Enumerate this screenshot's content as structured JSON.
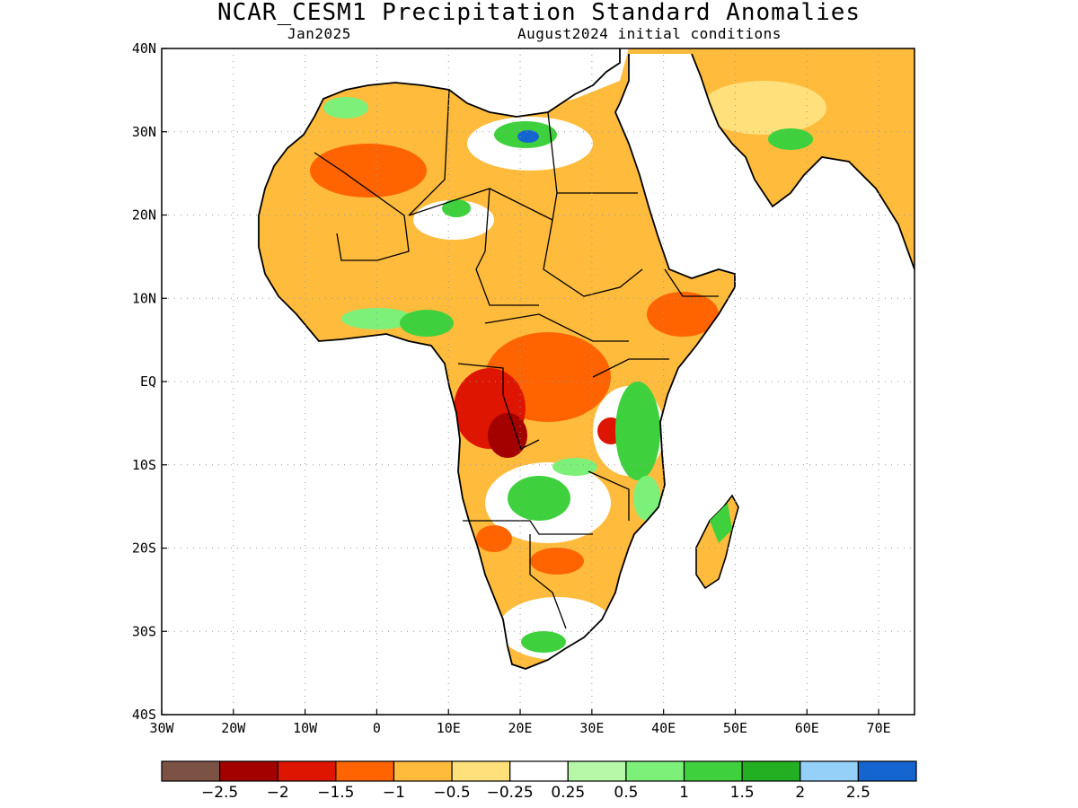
{
  "title": "NCAR_CESM1 Precipitation Standard Anomalies",
  "subtitle_left": "Jan2025",
  "subtitle_right": "August2024 initial conditions",
  "map": {
    "lon_range": [
      -30,
      75
    ],
    "lat_range": [
      -40,
      40
    ],
    "x_ticks": [
      {
        "lon": -30,
        "label": "30W"
      },
      {
        "lon": -20,
        "label": "20W"
      },
      {
        "lon": -10,
        "label": "10W"
      },
      {
        "lon": 0,
        "label": "0"
      },
      {
        "lon": 10,
        "label": "10E"
      },
      {
        "lon": 20,
        "label": "20E"
      },
      {
        "lon": 30,
        "label": "30E"
      },
      {
        "lon": 40,
        "label": "40E"
      },
      {
        "lon": 50,
        "label": "50E"
      },
      {
        "lon": 60,
        "label": "60E"
      },
      {
        "lon": 70,
        "label": "70E"
      }
    ],
    "y_ticks": [
      {
        "lat": 40,
        "label": "40N"
      },
      {
        "lat": 30,
        "label": "30N"
      },
      {
        "lat": 20,
        "label": "20N"
      },
      {
        "lat": 10,
        "label": "10N"
      },
      {
        "lat": 0,
        "label": "EQ"
      },
      {
        "lat": -10,
        "label": "10S"
      },
      {
        "lat": -20,
        "label": "20S"
      },
      {
        "lat": -30,
        "label": "30S"
      },
      {
        "lat": -40,
        "label": "40S"
      }
    ],
    "gridlines": "dotted",
    "land_base_color": "#ffbf40",
    "coast_color": "#000000"
  },
  "colorbar": {
    "colors": [
      "#7b5244",
      "#a30000",
      "#de1500",
      "#ff6400",
      "#ffbb3c",
      "#ffe07a",
      "#ffffff",
      "#b6f7a8",
      "#7df07a",
      "#3fd13d",
      "#22b022",
      "#94d0f8",
      "#1565d0"
    ],
    "labels": [
      "−2.5",
      "−2",
      "−1.5",
      "−1",
      "−0.5",
      "−0.25",
      "0.25",
      "0.5",
      "1",
      "1.5",
      "2",
      "2.5"
    ]
  }
}
